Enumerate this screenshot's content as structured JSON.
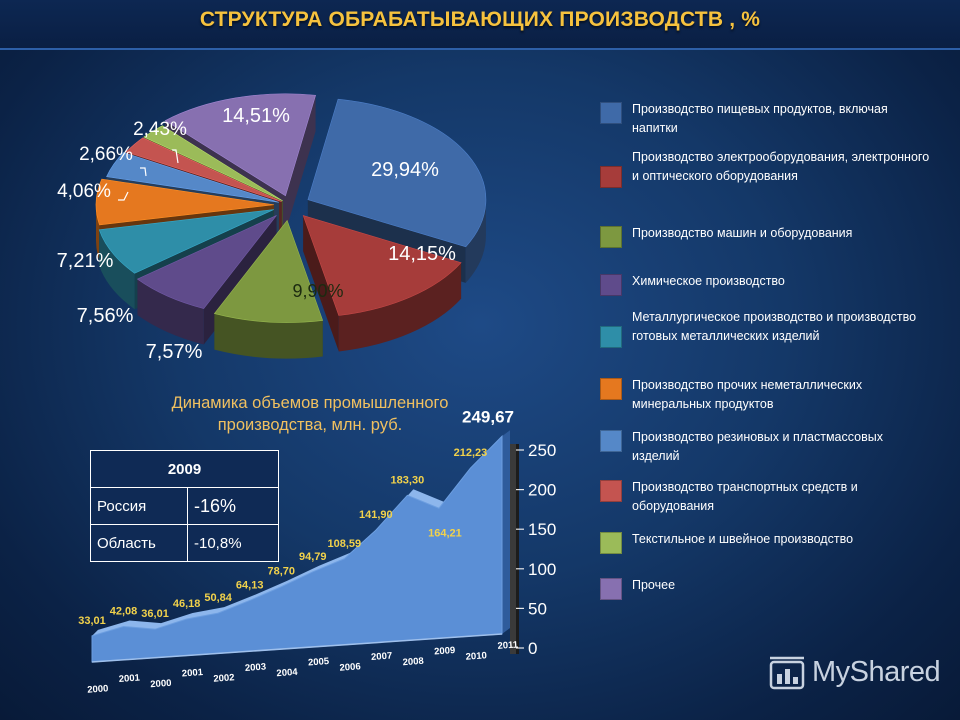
{
  "title": "СТРУКТУРА ОБРАБАТЫВАЮЩИХ ПРОИЗВОДСТВ , %",
  "chart_data": [
    {
      "type": "pie",
      "slices": [
        {
          "name": "Производство пищевых продуктов, включая напитки",
          "value": 29.94,
          "label": "29,94%",
          "color": "#3f6aa8"
        },
        {
          "name": "Производство электрооборудования, электронного и оптического оборудования",
          "value": 14.15,
          "label": "14,15%",
          "color": "#a63c3a"
        },
        {
          "name": "Производство машин и оборудования",
          "value": 9.9,
          "label": "9,90%",
          "color": "#7d9840"
        },
        {
          "name": "Химическое производство",
          "value": 7.57,
          "label": "7,57%",
          "color": "#5f4b8b"
        },
        {
          "name": "Металлургическое производство и производство готовых металлических изделий",
          "value": 7.56,
          "label": "7,56%",
          "color": "#2e8ea8"
        },
        {
          "name": "Производство прочих неметаллических минеральных продуктов",
          "value": 7.21,
          "label": "7,21%",
          "color": "#e5781f"
        },
        {
          "name": "Производство резиновых и пластмассовых изделий",
          "value": 4.06,
          "label": "4,06%",
          "color": "#5588c8"
        },
        {
          "name": "Производство транспортных средств и оборудования",
          "value": 2.66,
          "label": "2,66%",
          "color": "#c45450"
        },
        {
          "name": "Текстильное и швейное производство",
          "value": 2.43,
          "label": "2,43%",
          "color": "#9bbb59"
        },
        {
          "name": "Прочее",
          "value": 14.51,
          "label": "14,51%",
          "color": "#8770b0"
        }
      ]
    },
    {
      "type": "area",
      "title": "Динамика объемов промышленного производства, млн. руб.",
      "x": [
        "2000",
        "2001",
        "2000",
        "2001",
        "2002",
        "2003",
        "2004",
        "2005",
        "2006",
        "2007",
        "2008",
        "2009",
        "2010",
        "2011"
      ],
      "values": [
        33.01,
        42.08,
        36.01,
        46.18,
        50.84,
        64.13,
        78.7,
        94.79,
        108.59,
        141.9,
        183.3,
        164.21,
        212.23,
        249.67
      ],
      "value_labels": [
        "33,01",
        "42,08",
        "36,01",
        "46,18",
        "50,84",
        "64,13",
        "78,70",
        "94,79",
        "108,59",
        "141,90",
        "183,30",
        "164,21",
        "212,23",
        "249,67"
      ],
      "ylim": [
        0,
        250
      ],
      "yticks": [
        "0",
        "50",
        "100",
        "150",
        "200",
        "250"
      ],
      "color": "#5b8fd6"
    }
  ],
  "table": {
    "header": "2009",
    "rows": [
      {
        "name": "Россия",
        "value": "-16%"
      },
      {
        "name": "Область",
        "value": "-10,8%"
      }
    ]
  },
  "logo": {
    "text": "MyShared",
    "icon": "bar-chart-icon"
  }
}
